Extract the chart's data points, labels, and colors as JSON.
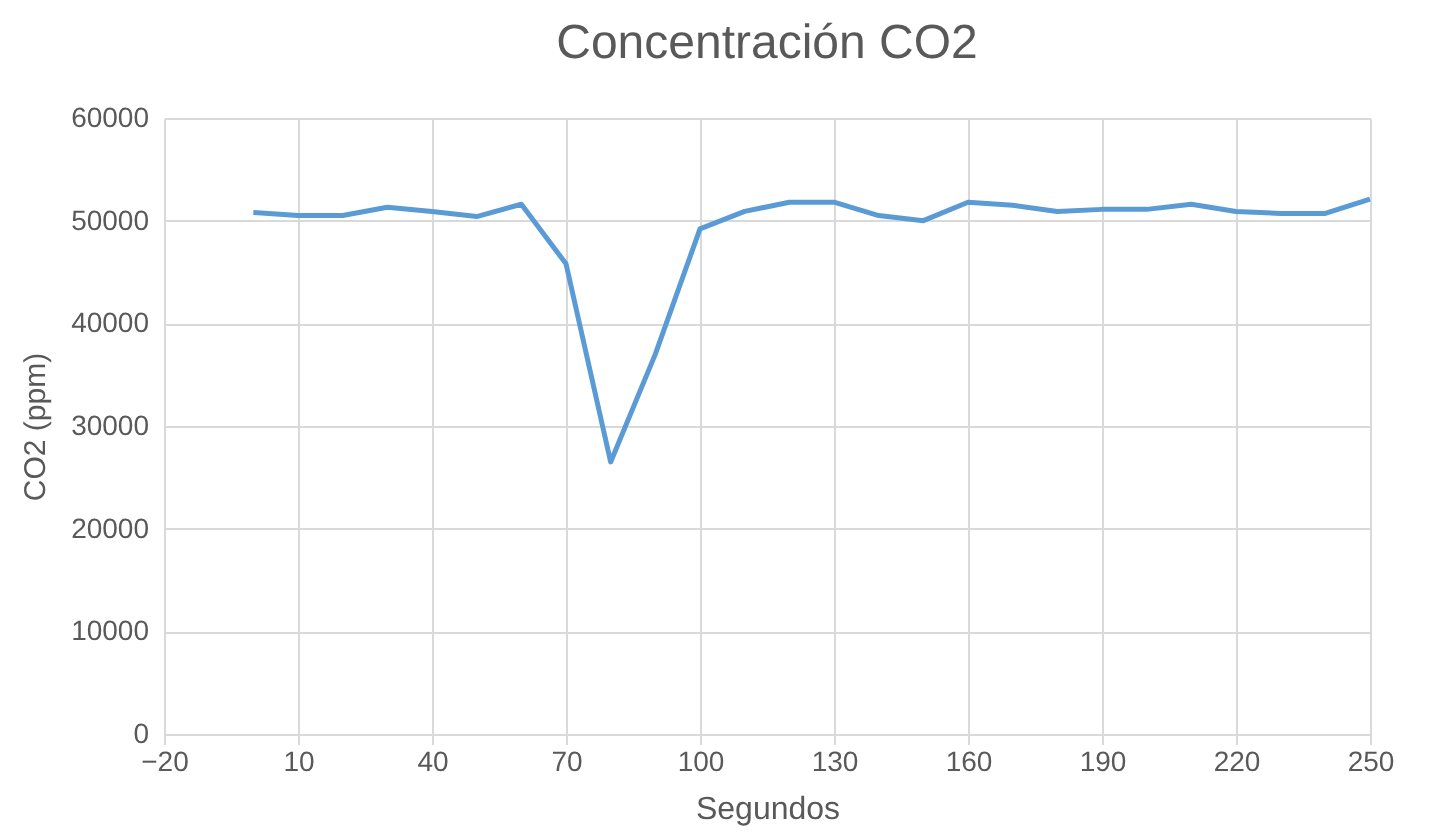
{
  "chart_data": {
    "type": "line",
    "title": "Concentración CO2",
    "xlabel": "Segundos",
    "ylabel": "CO2 (ppm)",
    "x": [
      0,
      10,
      20,
      30,
      40,
      50,
      60,
      70,
      80,
      90,
      100,
      110,
      120,
      130,
      140,
      150,
      160,
      170,
      180,
      190,
      200,
      210,
      220,
      230,
      240,
      250
    ],
    "series": [
      {
        "color": "#5b9bd5",
        "values": [
          50800,
          50500,
          50500,
          51300,
          50900,
          50400,
          51600,
          45800,
          26500,
          37000,
          49200,
          50900,
          51800,
          51800,
          50500,
          50000,
          51800,
          51500,
          50900,
          51100,
          51100,
          51600,
          50900,
          50700,
          50700,
          52100
        ]
      }
    ],
    "xlim": [
      -20,
      250
    ],
    "xticks": [
      -20,
      10,
      40,
      70,
      100,
      130,
      160,
      190,
      220,
      250
    ],
    "ylim": [
      0,
      60000
    ],
    "yticks": [
      0,
      10000,
      20000,
      30000,
      40000,
      50000,
      60000
    ],
    "grid": true,
    "marker": "none",
    "line_style": "solid"
  }
}
